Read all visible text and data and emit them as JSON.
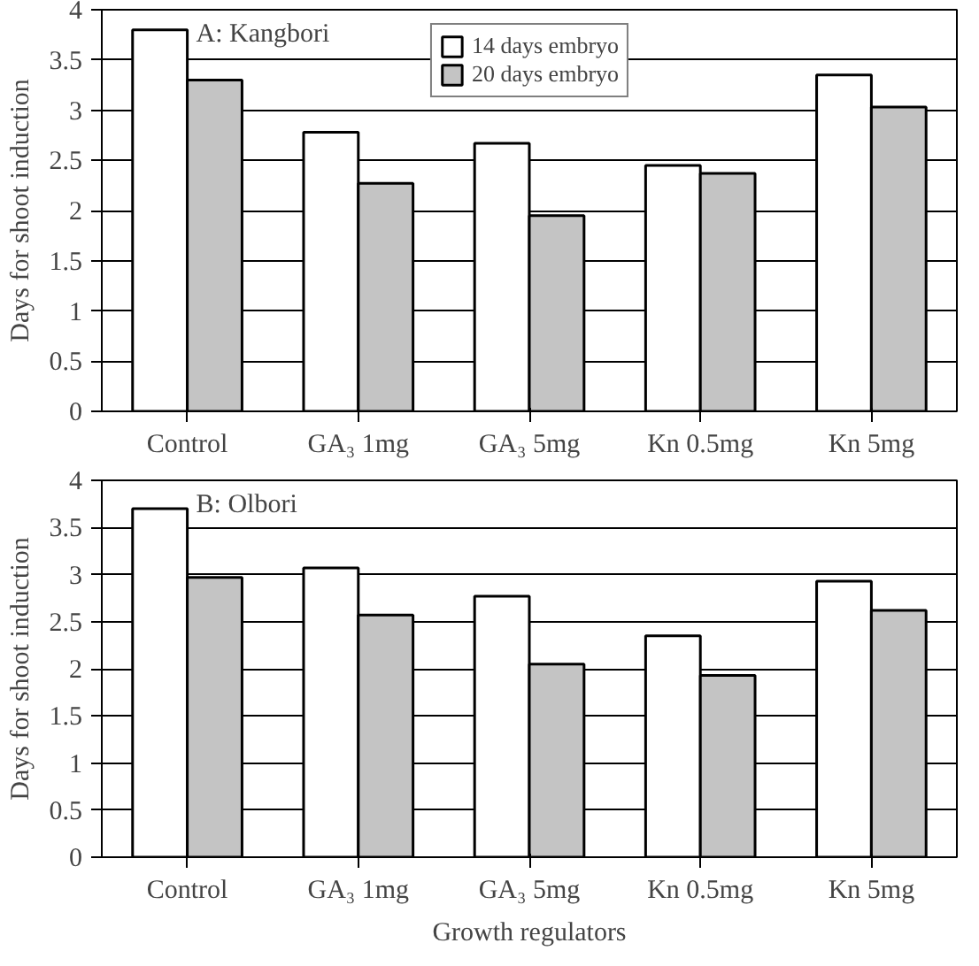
{
  "chart_data": [
    {
      "type": "bar",
      "title": "A: Kangbori",
      "ylabel": "Days for shoot induction",
      "categories": [
        "Control",
        "GA₃ 1mg",
        "GA₃ 5mg",
        "Kn 0.5mg",
        "Kn 5mg"
      ],
      "series": [
        {
          "name": "14 days embryo",
          "color": "#ffffff",
          "values": [
            3.8,
            2.78,
            2.67,
            2.45,
            3.35
          ]
        },
        {
          "name": "20 days embryo",
          "color": "#c4c4c4",
          "values": [
            3.3,
            2.27,
            1.95,
            2.37,
            3.03
          ]
        }
      ],
      "ylim": [
        0,
        4
      ],
      "yticks": [
        0,
        0.5,
        1,
        1.5,
        2,
        2.5,
        3,
        3.5,
        4
      ],
      "grid": "y",
      "legend": "top"
    },
    {
      "type": "bar",
      "title": "B: Olbori",
      "xlabel": "Growth regulators",
      "ylabel": "Days for shoot induction",
      "categories": [
        "Control",
        "GA₃ 1mg",
        "GA₃ 5mg",
        "Kn 0.5mg",
        "Kn 5mg"
      ],
      "series": [
        {
          "color": "#ffffff",
          "values": [
            3.7,
            3.07,
            2.77,
            2.35,
            2.93
          ]
        },
        {
          "color": "#c4c4c4",
          "values": [
            2.97,
            2.57,
            2.05,
            1.93,
            2.62
          ]
        }
      ],
      "ylim": [
        0,
        4
      ],
      "yticks": [
        0,
        0.5,
        1,
        1.5,
        2,
        2.5,
        3,
        3.5,
        4
      ],
      "grid": "y"
    }
  ]
}
